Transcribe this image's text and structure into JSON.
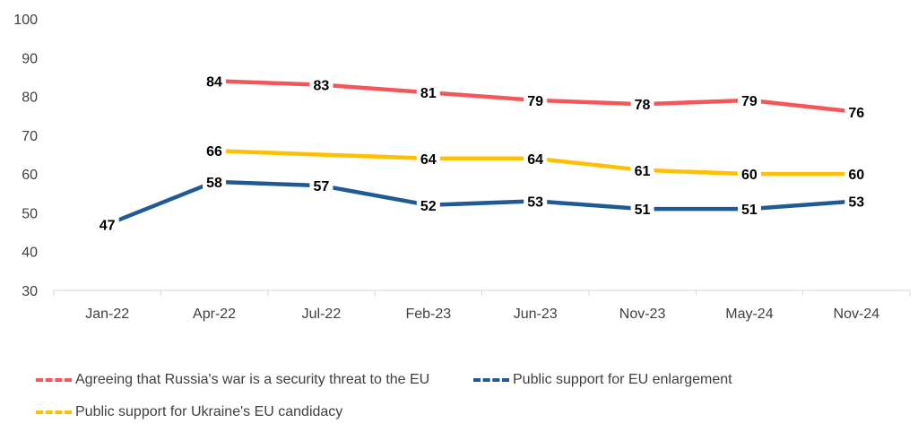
{
  "chart_data": {
    "type": "line",
    "categories": [
      "Jan-22",
      "Apr-22",
      "Jul-22",
      "Feb-23",
      "Jun-23",
      "Nov-23",
      "May-24",
      "Nov-24"
    ],
    "ylim": [
      30,
      100
    ],
    "yticks": [
      30,
      40,
      50,
      60,
      70,
      80,
      90,
      100
    ],
    "grid": false,
    "legend_position": "bottom",
    "series": [
      {
        "name": "Agreeing that Russia's war is a security threat to the EU",
        "color": "#F4565A",
        "values": [
          null,
          84,
          83,
          81,
          79,
          78,
          79,
          76
        ],
        "labels": [
          null,
          "84",
          "83",
          "81",
          "79",
          "78",
          "79",
          "76"
        ]
      },
      {
        "name": "Public support for EU enlargement",
        "color": "#1F5A96",
        "values": [
          47,
          58,
          57,
          52,
          53,
          51,
          51,
          53
        ],
        "labels": [
          "47",
          "58",
          "57",
          "52",
          "53",
          "51",
          "51",
          "53"
        ]
      },
      {
        "name": "Public support for Ukraine's EU candidacy",
        "color": "#FFC000",
        "values": [
          null,
          66,
          null,
          64,
          64,
          61,
          60,
          60
        ],
        "labels": [
          null,
          "66",
          null,
          "64",
          "64",
          "61",
          "60",
          "60"
        ]
      }
    ]
  }
}
